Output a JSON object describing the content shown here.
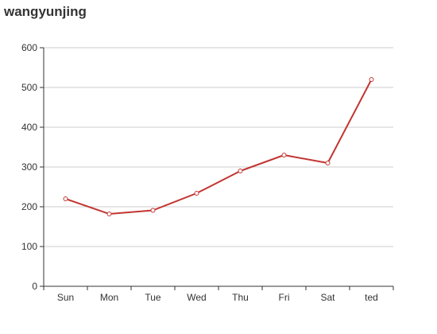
{
  "chart_data": {
    "type": "line",
    "title": "wangyunjing",
    "categories": [
      "Sun",
      "Mon",
      "Tue",
      "Wed",
      "Thu",
      "Fri",
      "Sat",
      "ted"
    ],
    "series": [
      {
        "values": [
          220,
          182,
          191,
          234,
          290,
          330,
          310,
          520
        ],
        "color": "#c23531"
      }
    ],
    "yticks": [
      0,
      100,
      200,
      300,
      400,
      500,
      600
    ],
    "ylim": [
      0,
      600
    ],
    "xlabel": "",
    "ylabel": "",
    "grid": true,
    "legend": "none"
  }
}
